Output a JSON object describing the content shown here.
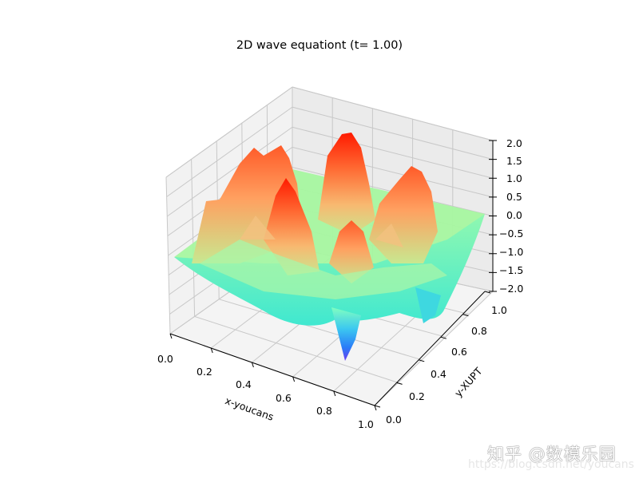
{
  "chart_data": {
    "type": "surface3d",
    "title": "2D wave equationt (t= 1.00)",
    "xlabel": "x-youcans",
    "ylabel": "y-XUPT",
    "zlabel": "",
    "xlim": [
      0.0,
      1.0
    ],
    "ylim": [
      0.0,
      1.0
    ],
    "zlim": [
      -2.0,
      2.0
    ],
    "x_ticks": [
      "0.0",
      "0.2",
      "0.4",
      "0.6",
      "0.8",
      "1.0"
    ],
    "y_ticks": [
      "0.0",
      "0.2",
      "0.4",
      "0.6",
      "0.8",
      "1.0"
    ],
    "z_ticks": [
      "2.0",
      "1.5",
      "1.0",
      "0.5",
      "0.0",
      "−0.5",
      "−1.0",
      "−1.5",
      "−2.0"
    ],
    "colormap": "rainbow",
    "grid": true,
    "surface_description": "Wave field u(x,y) at t=1.00 with several positive peaks (max about 2.0, red) and troughs (min about -2.0, violet) around a flat 0 boundary",
    "peaks": [
      {
        "label": "back-center peak",
        "x": 0.55,
        "y": 0.7,
        "z": 1.95
      },
      {
        "label": "center-left peak",
        "x": 0.35,
        "y": 0.45,
        "z": 1.6
      },
      {
        "label": "back-left ridge",
        "x": 0.2,
        "y": 0.7,
        "z": 1.4
      },
      {
        "label": "right peak",
        "x": 0.75,
        "y": 0.65,
        "z": 1.3
      },
      {
        "label": "center peak",
        "x": 0.5,
        "y": 0.35,
        "z": 1.1
      },
      {
        "label": "left shoulder",
        "x": 0.12,
        "y": 0.55,
        "z": 0.9
      }
    ],
    "troughs": [
      {
        "label": "deep trough",
        "x": 0.65,
        "y": 0.15,
        "z": -1.9
      },
      {
        "label": "right trough",
        "x": 0.85,
        "y": 0.6,
        "z": -0.9
      },
      {
        "label": "front trough",
        "x": 0.4,
        "y": 0.2,
        "z": -0.6
      }
    ]
  },
  "watermark": {
    "line1": "知乎 @数模乐园",
    "line2": "https://blog.csdn.net/youcans"
  }
}
